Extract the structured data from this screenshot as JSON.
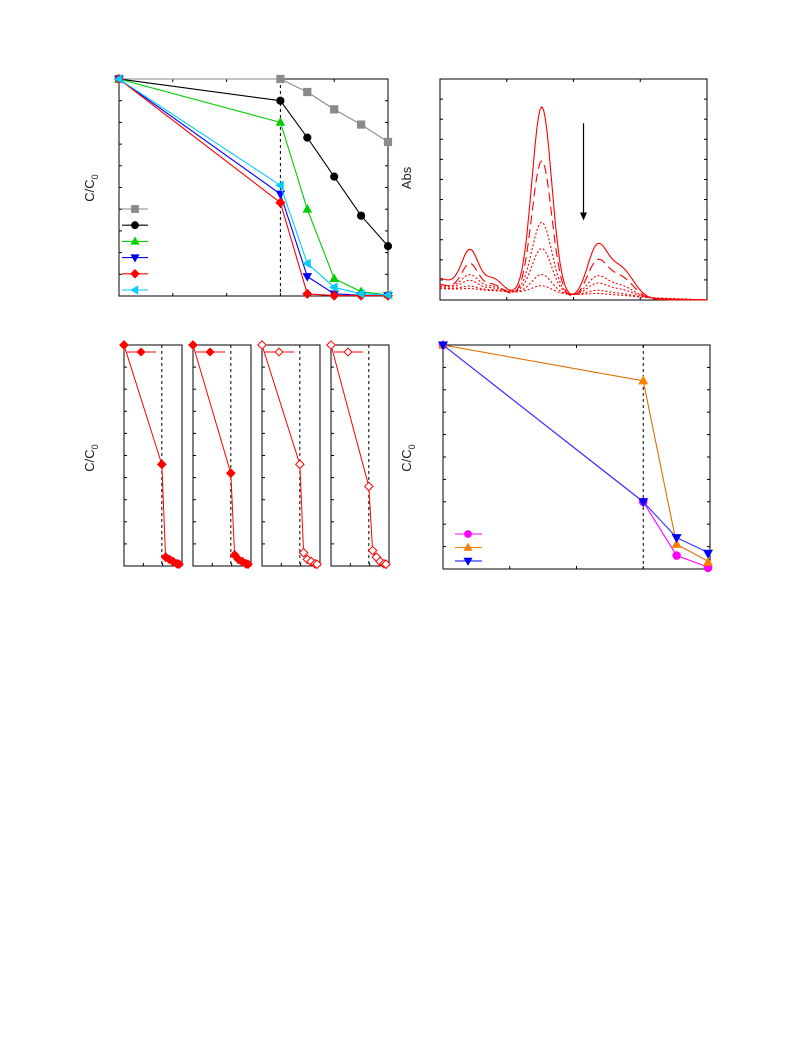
{
  "chart_data": [
    {
      "id": "a",
      "type": "line",
      "ylabel": "C/C",
      "ylabel_sub": "0",
      "xlim": [
        0,
        5
      ],
      "ylim": [
        0,
        1
      ],
      "vline_x": 3,
      "legend_position": "bottom-left",
      "series": [
        {
          "color": "#8a8a8a",
          "marker": "square",
          "x": [
            0,
            3,
            3.5,
            4,
            4.5,
            5
          ],
          "y": [
            1,
            1,
            0.94,
            0.86,
            0.79,
            0.71
          ]
        },
        {
          "color": "#000000",
          "marker": "circle",
          "x": [
            0,
            3,
            3.5,
            4,
            4.5,
            5
          ],
          "y": [
            1,
            0.9,
            0.73,
            0.55,
            0.37,
            0.23
          ]
        },
        {
          "color": "#00cc00",
          "marker": "triangle-up",
          "x": [
            0,
            3,
            3.5,
            4,
            4.5,
            5
          ],
          "y": [
            1,
            0.8,
            0.4,
            0.08,
            0.02,
            0.005
          ]
        },
        {
          "color": "#0000ff",
          "marker": "triangle-down",
          "x": [
            0,
            3,
            3.5,
            4,
            4.5,
            5
          ],
          "y": [
            1,
            0.47,
            0.09,
            0.01,
            0.003,
            0.002
          ]
        },
        {
          "color": "#ff0000",
          "marker": "diamond",
          "x": [
            0,
            3,
            3.5,
            4,
            4.5,
            5
          ],
          "y": [
            1,
            0.43,
            0.01,
            0.002,
            0.002,
            0.002
          ]
        },
        {
          "color": "#00ccff",
          "marker": "triangle-left",
          "x": [
            0,
            3,
            3.5,
            4,
            4.5,
            5
          ],
          "y": [
            1,
            0.51,
            0.15,
            0.04,
            0.01,
            0.005
          ]
        }
      ]
    },
    {
      "id": "b",
      "type": "line",
      "ylabel": "Abs",
      "xlim": [
        0,
        8
      ],
      "ylim": [
        0,
        1
      ],
      "arrow": {
        "x": 4.3,
        "y_from": 0.8,
        "y_to": 0.36
      },
      "color": "#ff0000",
      "series": [
        {
          "style": "solid",
          "scale": 1.0
        },
        {
          "style": "dashed",
          "scale": 0.72
        },
        {
          "style": "dotted",
          "scale": 0.38
        },
        {
          "style": "dotted",
          "scale": 0.24
        },
        {
          "style": "dotted",
          "scale": 0.1
        },
        {
          "style": "dotted",
          "scale": 0.04
        }
      ]
    },
    {
      "id": "c",
      "type": "line",
      "ylabel": "C/C",
      "ylabel_sub": "0",
      "color": "#ff0000",
      "panels": [
        {
          "filled": true,
          "vline_x": 3,
          "x": [
            0,
            3,
            3.3,
            3.6,
            3.9,
            4.2,
            4.5
          ],
          "y": [
            1,
            0.46,
            0.04,
            0.03,
            0.02,
            0.01,
            0.008
          ]
        },
        {
          "filled": true,
          "vline_x": 3,
          "x": [
            0,
            3,
            3.3,
            3.6,
            3.9,
            4.2,
            4.5
          ],
          "y": [
            1,
            0.42,
            0.05,
            0.03,
            0.02,
            0.01,
            0.008
          ]
        },
        {
          "filled": false,
          "vline_x": 3,
          "x": [
            0,
            3,
            3.3,
            3.6,
            3.9,
            4.2,
            4.5
          ],
          "y": [
            1,
            0.46,
            0.06,
            0.03,
            0.02,
            0.01,
            0.008
          ]
        },
        {
          "filled": false,
          "vline_x": 3,
          "x": [
            0,
            3,
            3.3,
            3.6,
            3.9,
            4.2,
            4.5
          ],
          "y": [
            1,
            0.36,
            0.07,
            0.04,
            0.02,
            0.01,
            0.008
          ]
        }
      ]
    },
    {
      "id": "d",
      "type": "line",
      "ylabel": "C/C",
      "ylabel_sub": "0",
      "xlim": [
        0,
        4
      ],
      "ylim": [
        0,
        1
      ],
      "vline_x": 3,
      "legend_position": "bottom-left",
      "series": [
        {
          "color": "#ff00ff",
          "line": "#ff00ff",
          "marker": "circle",
          "x": [
            0,
            3,
            3.5,
            4
          ],
          "y": [
            1,
            0.3,
            0.06,
            0.005
          ]
        },
        {
          "color": "#ff8000",
          "line": "#e07000",
          "marker": "triangle-up",
          "x": [
            0,
            3,
            3.5,
            4
          ],
          "y": [
            1,
            0.84,
            0.11,
            0.03
          ]
        },
        {
          "color": "#0000ff",
          "line": "#3333ff",
          "marker": "triangle-down",
          "x": [
            0,
            3,
            3.5,
            4
          ],
          "y": [
            1,
            0.3,
            0.14,
            0.07
          ]
        }
      ]
    }
  ]
}
